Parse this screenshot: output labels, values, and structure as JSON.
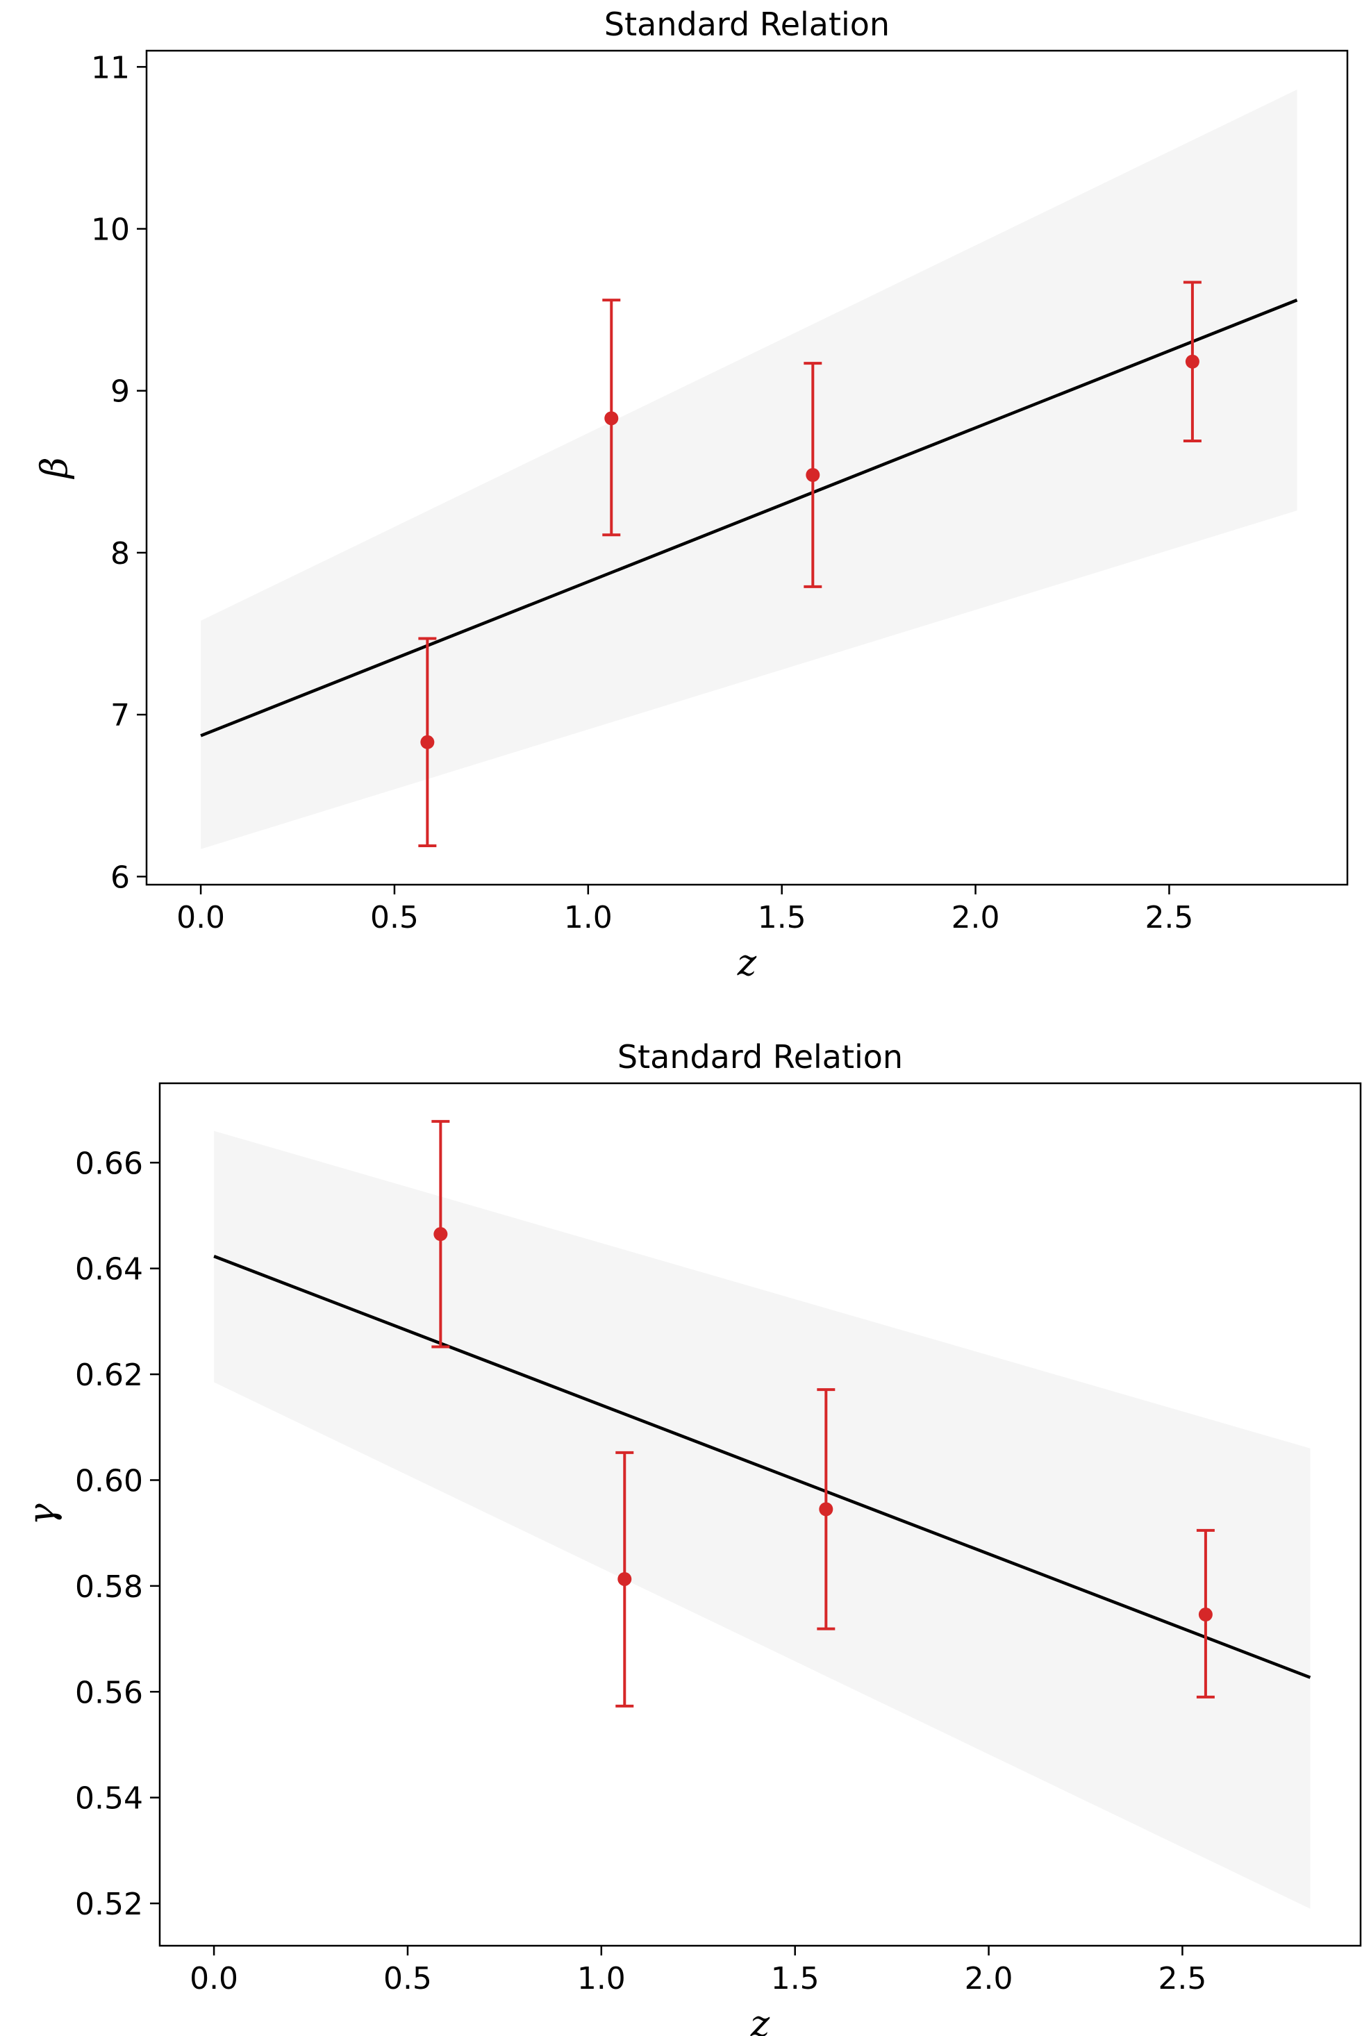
{
  "chart_data": [
    {
      "type": "scatter",
      "title": "Standard Relation",
      "xlabel": "z",
      "ylabel": "β",
      "xlim": [
        -0.14,
        2.96
      ],
      "ylim": [
        5.95,
        11.1
      ],
      "xticks": [
        0.0,
        0.5,
        1.0,
        1.5,
        2.0,
        2.5
      ],
      "xtick_labels": [
        "0.0",
        "0.5",
        "1.0",
        "1.5",
        "2.0",
        "2.5"
      ],
      "yticks": [
        6,
        7,
        8,
        9,
        10,
        11
      ],
      "ytick_labels": [
        "6",
        "7",
        "8",
        "9",
        "10",
        "11"
      ],
      "grid": false,
      "points": {
        "x": [
          0.585,
          1.06,
          1.58,
          2.56
        ],
        "y": [
          6.83,
          8.83,
          8.48,
          9.18
        ],
        "err_low": [
          0.64,
          0.72,
          0.69,
          0.49
        ],
        "err_high": [
          0.64,
          0.73,
          0.69,
          0.49
        ]
      },
      "fit_line": {
        "x": [
          0.0,
          2.83
        ],
        "y": [
          6.87,
          9.56
        ]
      },
      "band": {
        "x": [
          0.0,
          2.83
        ],
        "upper": [
          7.58,
          10.86
        ],
        "lower": [
          6.17,
          8.26
        ]
      },
      "colors": {
        "points": "#d62728",
        "line": "#000000",
        "band": "#f5f5f5"
      }
    },
    {
      "type": "scatter",
      "title": "Standard Relation",
      "xlabel": "z",
      "ylabel": "γ",
      "xlim": [
        -0.14,
        2.96
      ],
      "ylim": [
        0.512,
        0.675
      ],
      "xticks": [
        0.0,
        0.5,
        1.0,
        1.5,
        2.0,
        2.5
      ],
      "xtick_labels": [
        "0.0",
        "0.5",
        "1.0",
        "1.5",
        "2.0",
        "2.5"
      ],
      "yticks": [
        0.52,
        0.54,
        0.56,
        0.58,
        0.6,
        0.62,
        0.64,
        0.66
      ],
      "ytick_labels": [
        "0.52",
        "0.54",
        "0.56",
        "0.58",
        "0.60",
        "0.62",
        "0.64",
        "0.66"
      ],
      "grid": false,
      "points": {
        "x": [
          0.585,
          1.06,
          1.58,
          2.56
        ],
        "y": [
          0.6465,
          0.5813,
          0.5945,
          0.5746
        ],
        "err_low": [
          0.0213,
          0.024,
          0.0226,
          0.0156
        ],
        "err_high": [
          0.0213,
          0.0239,
          0.0226,
          0.0159
        ]
      },
      "fit_line": {
        "x": [
          0.0,
          2.83
        ],
        "y": [
          0.6423,
          0.5627
        ]
      },
      "band": {
        "x": [
          0.0,
          2.83
        ],
        "upper": [
          0.666,
          0.606
        ],
        "lower": [
          0.6185,
          0.519
        ]
      },
      "colors": {
        "points": "#d62728",
        "line": "#000000",
        "band": "#f5f5f5"
      }
    }
  ]
}
